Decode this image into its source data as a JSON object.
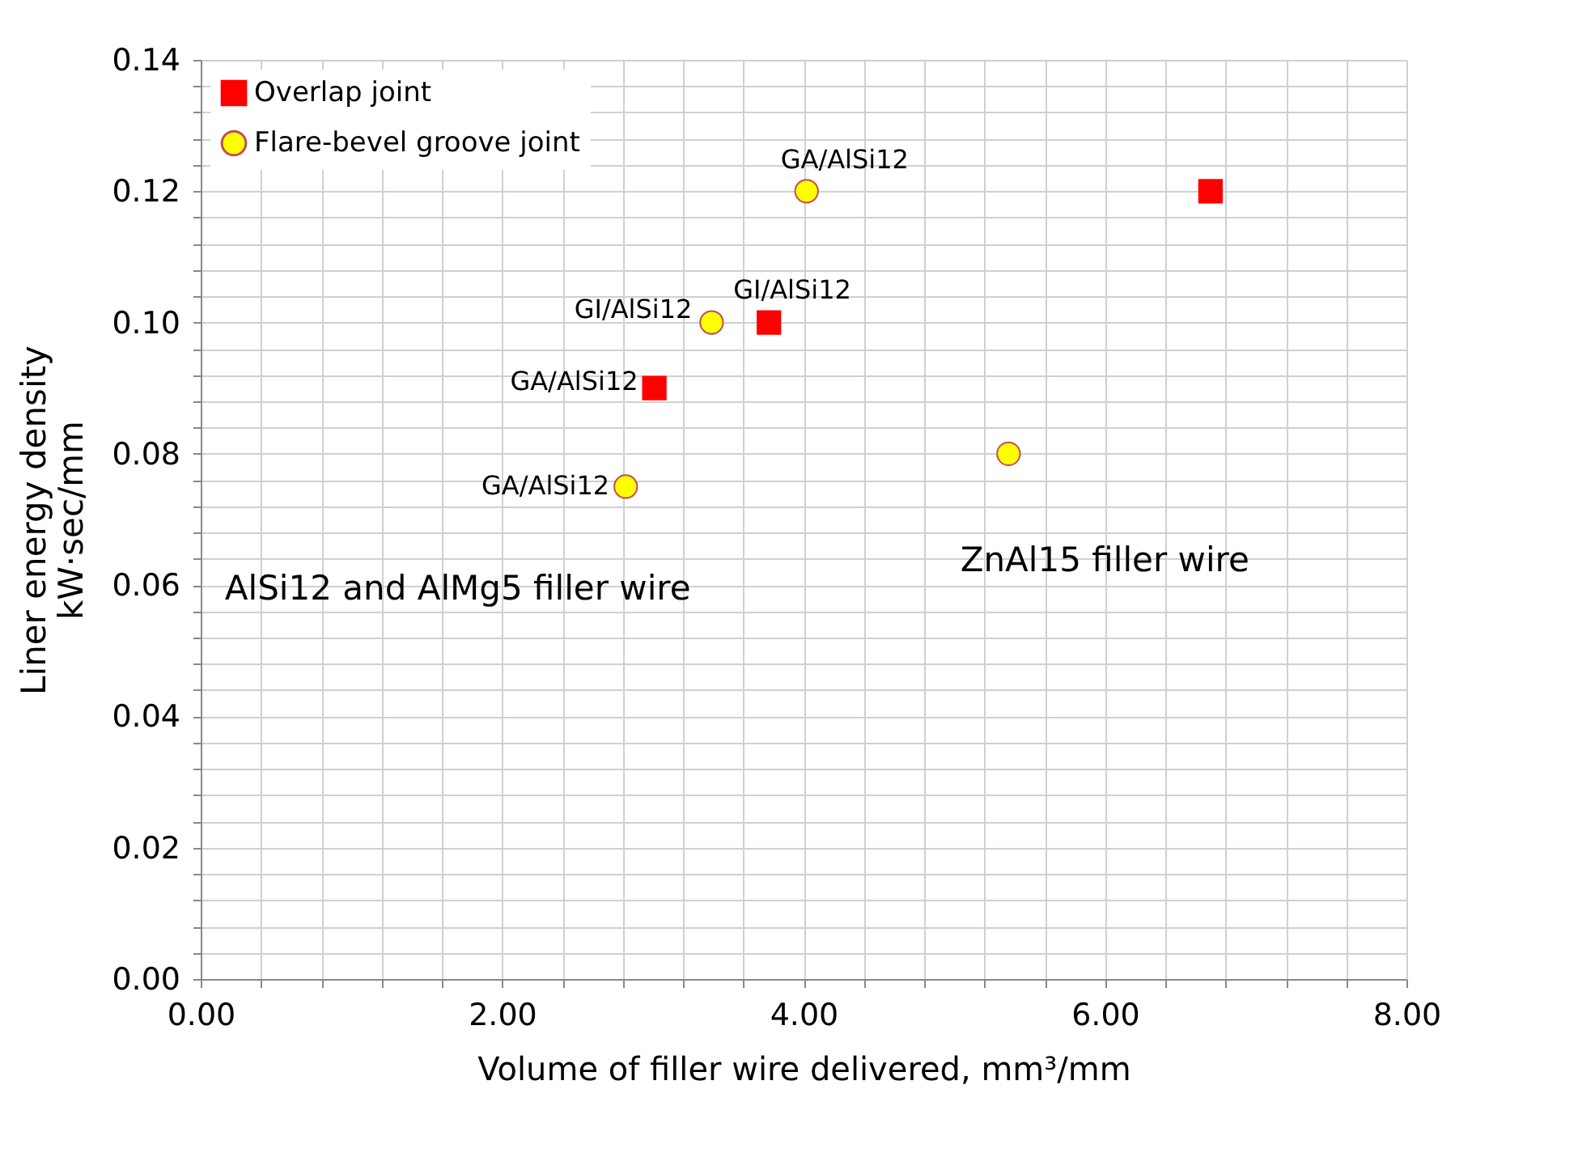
{
  "chart_data": {
    "type": "scatter",
    "xlabel": "Volume of filler wire delivered, mm³/mm",
    "ylabel": "Liner energy density\nkW·sec/mm",
    "series": [
      {
        "name": "Overlap joint",
        "color": "#ff0000",
        "marker": "square",
        "x": [
          3.01,
          3.77,
          6.7
        ],
        "values": [
          0.09,
          0.1,
          0.12
        ]
      },
      {
        "name": "Flare-bevel groove joint",
        "color": "#ffff00",
        "marker": "circle",
        "x": [
          2.82,
          3.39,
          4.02,
          5.36
        ],
        "values": [
          0.075,
          0.1,
          0.12,
          0.08
        ]
      }
    ],
    "annotations": [
      {
        "text": "GA/AlSi12",
        "x": 3.01,
        "y": 0.09
      },
      {
        "text": "GI/AlSi12",
        "x": 3.77,
        "y": 0.1
      },
      {
        "text": "GA/AlSi12",
        "x": 2.82,
        "y": 0.075
      },
      {
        "text": "GI/AlSi12",
        "x": 3.39,
        "y": 0.1
      },
      {
        "text": "GA/AlSi12",
        "x": 4.02,
        "y": 0.12
      },
      "AlSi12 and AlMg5 filler wire",
      "ZnAl15 filler wire"
    ],
    "xlim": [
      0,
      8
    ],
    "ylim": [
      0,
      0.14
    ],
    "xticks": [
      {
        "value": 0,
        "label": "0.00"
      },
      {
        "value": 0.4,
        "label": null
      },
      {
        "value": 0.8,
        "label": null
      },
      {
        "value": 1.2,
        "label": null
      },
      {
        "value": 1.6,
        "label": null
      },
      {
        "value": 2,
        "label": "2.00"
      },
      {
        "value": 2.4,
        "label": null
      },
      {
        "value": 2.8,
        "label": null
      },
      {
        "value": 3.2,
        "label": null
      },
      {
        "value": 3.6,
        "label": null
      },
      {
        "value": 4,
        "label": "4.00"
      },
      {
        "value": 4.4,
        "label": null
      },
      {
        "value": 4.8,
        "label": null
      },
      {
        "value": 5.2,
        "label": null
      },
      {
        "value": 5.6,
        "label": null
      },
      {
        "value": 6,
        "label": "6.00"
      },
      {
        "value": 6.4,
        "label": null
      },
      {
        "value": 6.8,
        "label": null
      },
      {
        "value": 7.2,
        "label": null
      },
      {
        "value": 7.6,
        "label": null
      },
      {
        "value": 8,
        "label": "8.00"
      }
    ],
    "yticks": [
      {
        "value": 0,
        "label": "0.00"
      },
      {
        "value": 0.004,
        "label": null
      },
      {
        "value": 0.008,
        "label": null
      },
      {
        "value": 0.012,
        "label": null
      },
      {
        "value": 0.016,
        "label": null
      },
      {
        "value": 0.02,
        "label": "0.02"
      },
      {
        "value": 0.024,
        "label": null
      },
      {
        "value": 0.028,
        "label": null
      },
      {
        "value": 0.032,
        "label": null
      },
      {
        "value": 0.036,
        "label": null
      },
      {
        "value": 0.04,
        "label": "0.04"
      },
      {
        "value": 0.044,
        "label": null
      },
      {
        "value": 0.048,
        "label": null
      },
      {
        "value": 0.052,
        "label": null
      },
      {
        "value": 0.056,
        "label": null
      },
      {
        "value": 0.06,
        "label": "0.06"
      },
      {
        "value": 0.064,
        "label": null
      },
      {
        "value": 0.068,
        "label": null
      },
      {
        "value": 0.072,
        "label": null
      },
      {
        "value": 0.076,
        "label": null
      },
      {
        "value": 0.08,
        "label": "0.08"
      },
      {
        "value": 0.084,
        "label": null
      },
      {
        "value": 0.088,
        "label": null
      },
      {
        "value": 0.092,
        "label": null
      },
      {
        "value": 0.096,
        "label": null
      },
      {
        "value": 0.1,
        "label": "0.10"
      },
      {
        "value": 0.104,
        "label": null
      },
      {
        "value": 0.108,
        "label": null
      },
      {
        "value": 0.112,
        "label": null
      },
      {
        "value": 0.116,
        "label": null
      },
      {
        "value": 0.12,
        "label": "0.12"
      },
      {
        "value": 0.124,
        "label": null
      },
      {
        "value": 0.128,
        "label": null
      },
      {
        "value": 0.132,
        "label": null
      },
      {
        "value": 0.136,
        "label": null
      },
      {
        "value": 0.14,
        "label": "0.14"
      }
    ],
    "grid": true,
    "legend": "top left"
  }
}
